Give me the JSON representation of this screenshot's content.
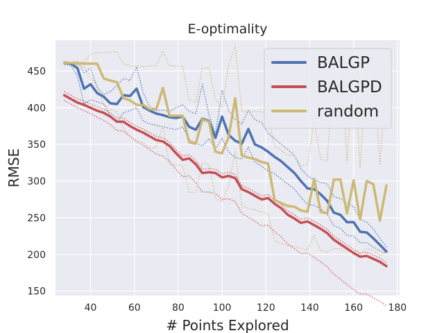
{
  "chart_data": {
    "type": "line",
    "title": "E-optimality",
    "xlabel": "# Points Explored",
    "ylabel": "RMSE",
    "xlim": [
      24,
      181
    ],
    "ylim": [
      144,
      492
    ],
    "xticks": [
      40,
      60,
      80,
      100,
      120,
      140,
      160,
      180
    ],
    "yticks": [
      150,
      200,
      250,
      300,
      350,
      400,
      450
    ],
    "grid": true,
    "legend_position": "top-right",
    "series": [
      {
        "name": "BALGP",
        "color": "#4c72b0",
        "x": [
          28,
          31,
          34,
          37,
          40,
          43,
          46,
          49,
          52,
          55,
          58,
          61,
          64,
          67,
          70,
          73,
          76,
          79,
          82,
          85,
          88,
          91,
          94,
          97,
          100,
          103,
          106,
          109,
          112,
          115,
          118,
          121,
          124,
          127,
          130,
          133,
          136,
          139,
          142,
          145,
          148,
          151,
          154,
          157,
          160,
          163,
          166,
          169,
          172,
          175
        ],
        "mean": [
          461,
          460,
          454,
          426,
          432,
          420,
          415,
          406,
          405,
          417,
          416,
          426,
          401,
          396,
          392,
          390,
          387,
          386,
          388,
          374,
          370,
          385,
          382,
          359,
          388,
          363,
          355,
          351,
          371,
          350,
          346,
          340,
          333,
          327,
          319,
          311,
          300,
          290,
          289,
          282,
          273,
          257,
          254,
          244,
          244,
          231,
          230,
          222,
          213,
          204
        ],
        "upper": [
          463,
          462,
          463,
          448,
          454,
          428,
          418,
          422,
          430,
          440,
          437,
          456,
          420,
          402,
          396,
          397,
          395,
          400,
          404,
          395,
          392,
          432,
          391,
          364,
          424,
          396,
          384,
          378,
          396,
          384,
          380,
          365,
          358,
          350,
          343,
          335,
          317,
          307,
          302,
          298,
          296,
          279,
          276,
          270,
          265,
          248,
          244,
          235,
          222,
          210
        ],
        "lower": [
          459,
          458,
          443,
          405,
          411,
          408,
          405,
          390,
          381,
          393,
          396,
          400,
          382,
          378,
          376,
          374,
          372,
          370,
          374,
          357,
          352,
          348,
          358,
          344,
          358,
          340,
          332,
          330,
          346,
          326,
          320,
          314,
          310,
          303,
          296,
          289,
          278,
          268,
          267,
          262,
          255,
          239,
          236,
          226,
          225,
          216,
          216,
          210,
          205,
          201
        ]
      },
      {
        "name": "BALGPD",
        "color": "#c44e52",
        "x": [
          28,
          31,
          34,
          37,
          40,
          43,
          46,
          49,
          52,
          55,
          58,
          61,
          64,
          67,
          70,
          73,
          76,
          79,
          82,
          85,
          88,
          91,
          94,
          97,
          100,
          103,
          106,
          109,
          112,
          115,
          118,
          121,
          124,
          127,
          130,
          133,
          136,
          139,
          142,
          145,
          148,
          151,
          154,
          157,
          160,
          163,
          166,
          169,
          172,
          175
        ],
        "mean": [
          417,
          412,
          407,
          404,
          400,
          396,
          393,
          388,
          381,
          381,
          375,
          370,
          366,
          361,
          356,
          354,
          348,
          338,
          329,
          331,
          323,
          311,
          312,
          311,
          305,
          307,
          304,
          289,
          285,
          280,
          275,
          277,
          269,
          263,
          254,
          249,
          243,
          245,
          240,
          235,
          229,
          220,
          214,
          208,
          202,
          197,
          198,
          194,
          190,
          184
        ],
        "upper": [
          422,
          417,
          412,
          409,
          405,
          401,
          398,
          393,
          386,
          386,
          380,
          375,
          371,
          366,
          361,
          359,
          353,
          343,
          334,
          336,
          328,
          316,
          317,
          316,
          310,
          312,
          309,
          294,
          290,
          285,
          280,
          282,
          274,
          268,
          259,
          254,
          248,
          250,
          245,
          240,
          234,
          225,
          219,
          213,
          207,
          202,
          203,
          199,
          195,
          189
        ],
        "lower": [
          410,
          405,
          400,
          396,
          392,
          387,
          383,
          377,
          369,
          368,
          361,
          355,
          349,
          343,
          337,
          334,
          327,
          316,
          306,
          307,
          298,
          285,
          285,
          283,
          275,
          276,
          272,
          256,
          251,
          245,
          239,
          240,
          231,
          224,
          214,
          208,
          201,
          202,
          196,
          190,
          183,
          173,
          166,
          159,
          152,
          146,
          146,
          141,
          136,
          130
        ]
      },
      {
        "name": "random",
        "color": "#ccb974",
        "x": [
          28,
          31,
          34,
          37,
          40,
          43,
          46,
          49,
          52,
          55,
          58,
          61,
          64,
          67,
          70,
          73,
          76,
          79,
          82,
          85,
          88,
          91,
          94,
          97,
          100,
          103,
          106,
          109,
          112,
          115,
          118,
          121,
          124,
          127,
          130,
          133,
          136,
          139,
          142,
          145,
          148,
          151,
          154,
          157,
          160,
          163,
          166,
          169,
          172,
          175
        ],
        "mean": [
          461,
          461,
          460,
          460,
          460,
          460,
          440,
          437,
          435,
          413,
          410,
          404,
          404,
          398,
          398,
          427,
          389,
          389,
          389,
          353,
          351,
          384,
          381,
          340,
          338,
          360,
          413,
          335,
          332,
          330,
          326,
          324,
          274,
          270,
          266,
          265,
          260,
          258,
          303,
          258,
          256,
          302,
          302,
          256,
          301,
          248,
          300,
          296,
          246,
          294
        ],
        "upper": [
          462,
          462,
          462,
          462,
          473,
          475,
          475,
          476,
          476,
          460,
          457,
          457,
          456,
          457,
          457,
          477,
          457,
          457,
          457,
          410,
          408,
          453,
          455,
          412,
          400,
          458,
          484,
          395,
          395,
          395,
          395,
          387,
          347,
          342,
          335,
          335,
          321,
          322,
          383,
          330,
          327,
          466,
          476,
          327,
          466,
          318,
          456,
          452,
          322,
          451
        ],
        "lower": [
          460,
          460,
          458,
          456,
          441,
          430,
          405,
          398,
          394,
          372,
          361,
          352,
          353,
          345,
          346,
          375,
          322,
          322,
          321,
          285,
          284,
          325,
          323,
          277,
          272,
          294,
          341,
          266,
          263,
          261,
          258,
          255,
          219,
          215,
          212,
          211,
          208,
          206,
          226,
          205,
          203,
          208,
          208,
          203,
          208,
          200,
          208,
          206,
          198,
          205
        ]
      }
    ]
  }
}
